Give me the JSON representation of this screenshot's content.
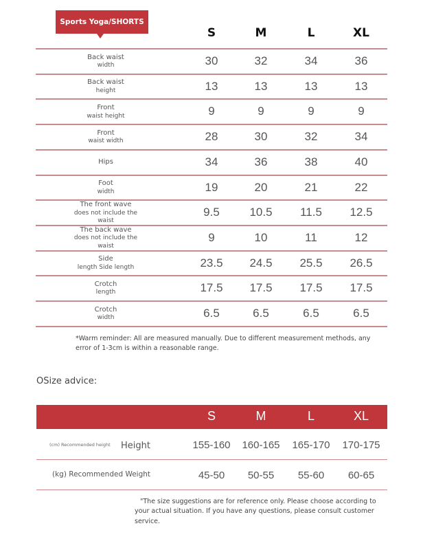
{
  "title": "Sports Yoga/SHORTS",
  "sizes": [
    "S",
    "M",
    "L",
    "XL"
  ],
  "rows": [
    {
      "label1": "Back waist",
      "label2": "width",
      "values": [
        "30",
        "32",
        "34",
        "36"
      ]
    },
    {
      "label1": "Back waist",
      "label2": "height",
      "values": [
        "13",
        "13",
        "13",
        "13"
      ]
    },
    {
      "label1": "Front",
      "label2": "waist height",
      "values": [
        "9",
        "9",
        "9",
        "9"
      ]
    },
    {
      "label1": "Front",
      "label2": "waist width",
      "values": [
        "28",
        "30",
        "32",
        "34"
      ]
    },
    {
      "label1": "Hips",
      "label2": "",
      "values": [
        "34",
        "36",
        "38",
        "40"
      ]
    },
    {
      "label1": "Foot",
      "label2": "width",
      "values": [
        "19",
        "20",
        "21",
        "22"
      ]
    },
    {
      "label1": "The front wave",
      "label2": "does not include the waist",
      "values": [
        "9.5",
        "10.5",
        "11.5",
        "12.5"
      ]
    },
    {
      "label1": "The back wave",
      "label2": "does not include the waist",
      "values": [
        "9",
        "10",
        "11",
        "12"
      ]
    },
    {
      "label1": "Side",
      "label2": "length Side length",
      "values": [
        "23.5",
        "24.5",
        "25.5",
        "26.5"
      ]
    },
    {
      "label1": "Crotch",
      "label2": "length",
      "values": [
        "17.5",
        "17.5",
        "17.5",
        "17.5"
      ]
    },
    {
      "label1": "Crotch",
      "label2": "width",
      "values": [
        "6.5",
        "6.5",
        "6.5",
        "6.5"
      ]
    }
  ],
  "reminder": "*Warm reminder: All are measured manually. Due to different measurement methods, any error of 1-3cm is within a reasonable range.",
  "advice": {
    "title": "OSize advice:",
    "sizes": [
      "S",
      "M",
      "L",
      "XL"
    ],
    "height": {
      "small_label": "(cm) Recommended height",
      "label": "Height",
      "values": [
        "155-160",
        "160-165",
        "165-170",
        "170-175"
      ]
    },
    "weight": {
      "label": "(kg) Recommended Weight",
      "values": [
        "45-50",
        "50-55",
        "55-60",
        "60-65"
      ]
    },
    "note": "\"The size suggestions are for reference only. Please choose according to your actual situation. If you have any questions, please consult customer service."
  },
  "colors": {
    "accent": "#c0363a",
    "line": "#c98a8c"
  }
}
